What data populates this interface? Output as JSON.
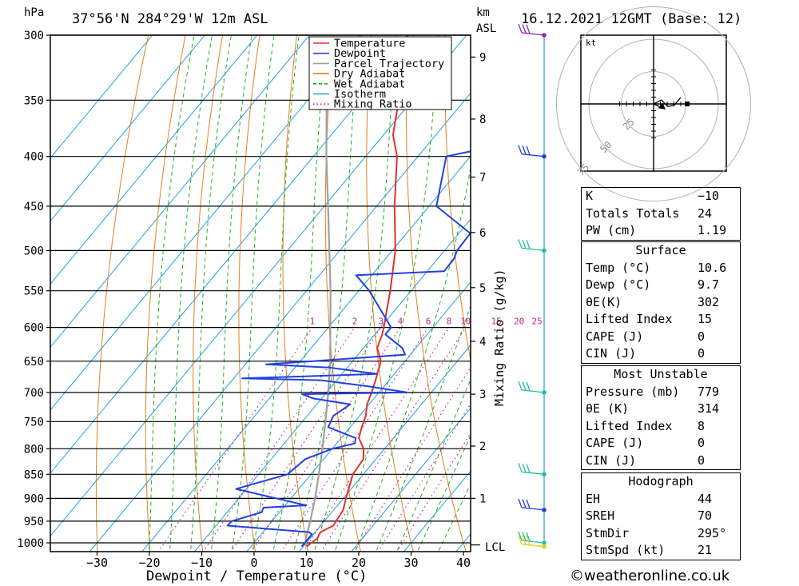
{
  "header": {
    "location": "37°56'N  284°29'W  12m  ASL",
    "date": "16.12.2021  12GMT  (Base: 12)",
    "hpa_label": "hPa",
    "km_label": "km",
    "asl_label": "ASL"
  },
  "legend": [
    {
      "name": "Temperature",
      "color": "#e03030",
      "style": "solid"
    },
    {
      "name": "Dewpoint",
      "color": "#2040e0",
      "style": "solid"
    },
    {
      "name": "Parcel Trajectory",
      "color": "#a0a0a0",
      "style": "solid"
    },
    {
      "name": "Dry Adiabat",
      "color": "#e08020",
      "style": "solid"
    },
    {
      "name": "Wet Adiabat",
      "color": "#20b020",
      "style": "dashed"
    },
    {
      "name": "Isotherm",
      "color": "#20a0e0",
      "style": "solid"
    },
    {
      "name": "Mixing Ratio",
      "color": "#c02090",
      "style": "dotted"
    }
  ],
  "chart_data": {
    "type": "line",
    "chart_kind": "skew-T log-P",
    "xlabel": "Dewpoint / Temperature (°C)",
    "ylabel_left": "hPa",
    "ylabel_right_top": "km",
    "ylabel_mixing": "Mixing Ratio (g/kg)",
    "xlim": [
      -40,
      40
    ],
    "ylim": [
      1000,
      300
    ],
    "x_ticks": [
      -30,
      -20,
      -10,
      0,
      10,
      20,
      30,
      40
    ],
    "pressure_levels": [
      300,
      350,
      400,
      450,
      500,
      550,
      600,
      650,
      700,
      750,
      800,
      850,
      900,
      950,
      1000
    ],
    "km_ticks": [
      {
        "km": 1,
        "p": 900
      },
      {
        "km": 2,
        "p": 795
      },
      {
        "km": 3,
        "p": 703
      },
      {
        "km": 4,
        "p": 620
      },
      {
        "km": 5,
        "p": 546
      },
      {
        "km": 6,
        "p": 479
      },
      {
        "km": 7,
        "p": 420
      },
      {
        "km": 8,
        "p": 366
      },
      {
        "km": 9,
        "p": 316
      }
    ],
    "lcl_label": "LCL",
    "lcl_p": 1005,
    "mixing_ratio_labels": [
      "1",
      "2",
      "3",
      "4",
      "6",
      "8",
      "10",
      "15",
      "20",
      "25"
    ],
    "mixing_ratio_values": [
      1,
      2,
      3,
      4,
      6,
      8,
      10,
      15,
      20,
      25
    ],
    "series": [
      {
        "name": "Temperature",
        "points": [
          [
            1009,
            10.6
          ],
          [
            990,
            11.4
          ],
          [
            975,
            11.0
          ],
          [
            960,
            12.4
          ],
          [
            925,
            11.8
          ],
          [
            900,
            10.5
          ],
          [
            850,
            8.0
          ],
          [
            820,
            7.6
          ],
          [
            800,
            6.0
          ],
          [
            780,
            3.4
          ],
          [
            760,
            2.2
          ],
          [
            740,
            1.2
          ],
          [
            720,
            -0.4
          ],
          [
            700,
            -1.4
          ],
          [
            680,
            -2.6
          ],
          [
            650,
            -4.6
          ],
          [
            630,
            -7.4
          ],
          [
            610,
            -8.6
          ],
          [
            600,
            -9.4
          ],
          [
            550,
            -14.0
          ],
          [
            500,
            -19.4
          ],
          [
            450,
            -26.6
          ],
          [
            400,
            -34.0
          ],
          [
            380,
            -38.2
          ],
          [
            350,
            -42.6
          ],
          [
            300,
            -51.4
          ]
        ]
      },
      {
        "name": "Dewpoint",
        "points": [
          [
            1009,
            9.7
          ],
          [
            980,
            9.7
          ],
          [
            975,
            8.8
          ],
          [
            960,
            -7.8
          ],
          [
            950,
            -7.7
          ],
          [
            930,
            -3.4
          ],
          [
            920,
            -3.8
          ],
          [
            915,
            4.0
          ],
          [
            880,
            -12.0
          ],
          [
            850,
            -4.5
          ],
          [
            820,
            -3.5
          ],
          [
            800,
            0.0
          ],
          [
            790,
            3.5
          ],
          [
            780,
            2.8
          ],
          [
            760,
            -4.2
          ],
          [
            740,
            -5.0
          ],
          [
            720,
            -3.6
          ],
          [
            710,
            -11.6
          ],
          [
            703,
            -14.4
          ],
          [
            700,
            5.4
          ],
          [
            690,
            -3.0
          ],
          [
            680,
            -13.0
          ],
          [
            677,
            -28.4
          ],
          [
            670,
            -3.3
          ],
          [
            660,
            -13.4
          ],
          [
            655,
            -26.0
          ],
          [
            640,
            -1.0
          ],
          [
            630,
            -2.6
          ],
          [
            610,
            -8.0
          ],
          [
            600,
            -8.0
          ],
          [
            550,
            -18.0
          ],
          [
            530,
            -23.0
          ],
          [
            525,
            -6.8
          ],
          [
            510,
            -6.9
          ],
          [
            500,
            -7.6
          ],
          [
            480,
            -7.8
          ],
          [
            450,
            -18.6
          ],
          [
            400,
            -24.6
          ],
          [
            390,
            -16.6
          ],
          [
            375,
            -20.4
          ],
          [
            360,
            -18.2
          ],
          [
            330,
            -21.6
          ],
          [
            320,
            -7.0
          ],
          [
            310,
            -19.8
          ],
          [
            300,
            -26.2
          ]
        ]
      },
      {
        "name": "Parcel Trajectory",
        "points": [
          [
            1009,
            10.6
          ],
          [
            990,
            9.2
          ],
          [
            950,
            7.3
          ],
          [
            900,
            4.6
          ],
          [
            850,
            1.5
          ],
          [
            800,
            -1.9
          ],
          [
            750,
            -5.6
          ],
          [
            700,
            -9.7
          ],
          [
            650,
            -14.3
          ],
          [
            600,
            -19.6
          ],
          [
            550,
            -25.4
          ],
          [
            500,
            -32.0
          ],
          [
            450,
            -39.3
          ],
          [
            400,
            -47.5
          ],
          [
            350,
            -56.4
          ],
          [
            310,
            -64.0
          ]
        ]
      }
    ],
    "dry_adiabats_theta_C": [
      -30,
      -20,
      -10,
      0,
      10,
      20,
      30,
      40,
      50,
      60,
      70,
      80,
      90,
      100,
      110,
      120,
      130
    ],
    "wet_adiabats_C": [
      -20,
      -16,
      -12,
      -8,
      -4,
      0,
      4,
      8,
      12,
      16,
      20,
      24,
      28,
      32,
      36
    ],
    "isotherms_C": [
      -100,
      -90,
      -80,
      -70,
      -60,
      -50,
      -40,
      -30,
      -20,
      -10,
      0,
      10,
      20,
      30,
      40
    ]
  },
  "wind_profile": [
    {
      "p": 300,
      "color": "#9020c0"
    },
    {
      "p": 400,
      "color": "#2040e0"
    },
    {
      "p": 500,
      "color": "#20c0a0"
    },
    {
      "p": 700,
      "color": "#20c0a0"
    },
    {
      "p": 850,
      "color": "#20c0a0"
    },
    {
      "p": 925,
      "color": "#2040e0"
    },
    {
      "p": 1000,
      "color": "#20c0a0"
    },
    {
      "p": 1009,
      "color": "#e0d020"
    }
  ],
  "hodograph": {
    "unit_label": "kt",
    "ring_labels": [
      "25",
      "50",
      "75"
    ],
    "path_kt": [
      [
        0,
        0
      ],
      [
        6,
        3
      ],
      [
        11,
        -2
      ],
      [
        16,
        -1
      ],
      [
        21,
        5
      ]
    ],
    "storm_motion_kt": [
      9,
      -4
    ]
  },
  "indices": [
    {
      "label": "K",
      "value": "-10"
    },
    {
      "label": "Totals Totals",
      "value": "24"
    },
    {
      "label": "PW (cm)",
      "value": "1.19"
    }
  ],
  "surface": {
    "title": "Surface",
    "rows": [
      {
        "label": "Temp (°C)",
        "value": "10.6"
      },
      {
        "label": "Dewp (°C)",
        "value": "9.7"
      },
      {
        "label": "θE(K)",
        "value": "302"
      },
      {
        "label": "Lifted Index",
        "value": "15"
      },
      {
        "label": "CAPE (J)",
        "value": "0"
      },
      {
        "label": "CIN (J)",
        "value": "0"
      }
    ]
  },
  "most_unstable": {
    "title": "Most Unstable",
    "rows": [
      {
        "label": "Pressure (mb)",
        "value": "779"
      },
      {
        "label": "θE (K)",
        "value": "314"
      },
      {
        "label": "Lifted Index",
        "value": "8"
      },
      {
        "label": "CAPE (J)",
        "value": "0"
      },
      {
        "label": "CIN (J)",
        "value": "0"
      }
    ]
  },
  "hodograph_table": {
    "title": "Hodograph",
    "rows": [
      {
        "label": "EH",
        "value": "44"
      },
      {
        "label": "SREH",
        "value": "70"
      },
      {
        "label": "StmDir",
        "value": "295°"
      },
      {
        "label": "StmSpd (kt)",
        "value": "21"
      }
    ]
  },
  "credit": "©weatheronline.co.uk"
}
